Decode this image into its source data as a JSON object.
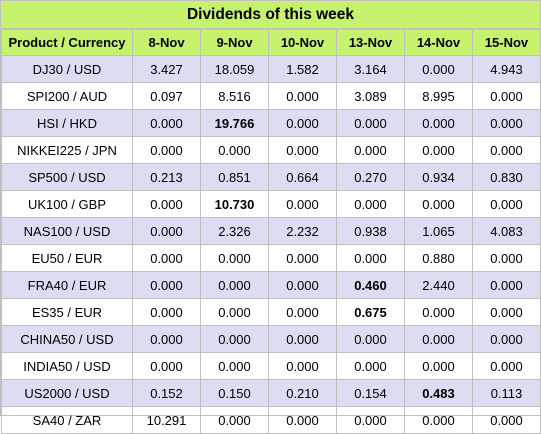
{
  "title": "Dividends of this week",
  "headers": [
    "Product / Currency",
    "8-Nov",
    "9-Nov",
    "10-Nov",
    "13-Nov",
    "14-Nov",
    "15-Nov"
  ],
  "highlight_color": "#c6f26e",
  "alt_row_color": "#dcdcf2",
  "rows": [
    {
      "product": "DJ30 / USD",
      "values": [
        "3.427",
        "18.059",
        "1.582",
        "3.164",
        "0.000",
        "4.943"
      ],
      "bold": []
    },
    {
      "product": "SPI200 / AUD",
      "values": [
        "0.097",
        "8.516",
        "0.000",
        "3.089",
        "8.995",
        "0.000"
      ],
      "bold": []
    },
    {
      "product": "HSI / HKD",
      "values": [
        "0.000",
        "19.766",
        "0.000",
        "0.000",
        "0.000",
        "0.000"
      ],
      "bold": [
        1
      ]
    },
    {
      "product": "NIKKEI225 / JPN",
      "values": [
        "0.000",
        "0.000",
        "0.000",
        "0.000",
        "0.000",
        "0.000"
      ],
      "bold": []
    },
    {
      "product": "SP500 / USD",
      "values": [
        "0.213",
        "0.851",
        "0.664",
        "0.270",
        "0.934",
        "0.830"
      ],
      "bold": []
    },
    {
      "product": "UK100 / GBP",
      "values": [
        "0.000",
        "10.730",
        "0.000",
        "0.000",
        "0.000",
        "0.000"
      ],
      "bold": [
        1
      ]
    },
    {
      "product": "NAS100 / USD",
      "values": [
        "0.000",
        "2.326",
        "2.232",
        "0.938",
        "1.065",
        "4.083"
      ],
      "bold": []
    },
    {
      "product": "EU50 / EUR",
      "values": [
        "0.000",
        "0.000",
        "0.000",
        "0.000",
        "0.880",
        "0.000"
      ],
      "bold": []
    },
    {
      "product": "FRA40 / EUR",
      "values": [
        "0.000",
        "0.000",
        "0.000",
        "0.460",
        "2.440",
        "0.000"
      ],
      "bold": [
        3
      ]
    },
    {
      "product": "ES35 / EUR",
      "values": [
        "0.000",
        "0.000",
        "0.000",
        "0.675",
        "0.000",
        "0.000"
      ],
      "bold": [
        3
      ]
    },
    {
      "product": "CHINA50 / USD",
      "values": [
        "0.000",
        "0.000",
        "0.000",
        "0.000",
        "0.000",
        "0.000"
      ],
      "bold": []
    },
    {
      "product": "INDIA50 / USD",
      "values": [
        "0.000",
        "0.000",
        "0.000",
        "0.000",
        "0.000",
        "0.000"
      ],
      "bold": []
    },
    {
      "product": "US2000 / USD",
      "values": [
        "0.152",
        "0.150",
        "0.210",
        "0.154",
        "0.483",
        "0.113"
      ],
      "bold": [
        4
      ]
    },
    {
      "product": "SA40 / ZAR",
      "values": [
        "10.291",
        "0.000",
        "0.000",
        "0.000",
        "0.000",
        "0.000"
      ],
      "bold": []
    }
  ]
}
